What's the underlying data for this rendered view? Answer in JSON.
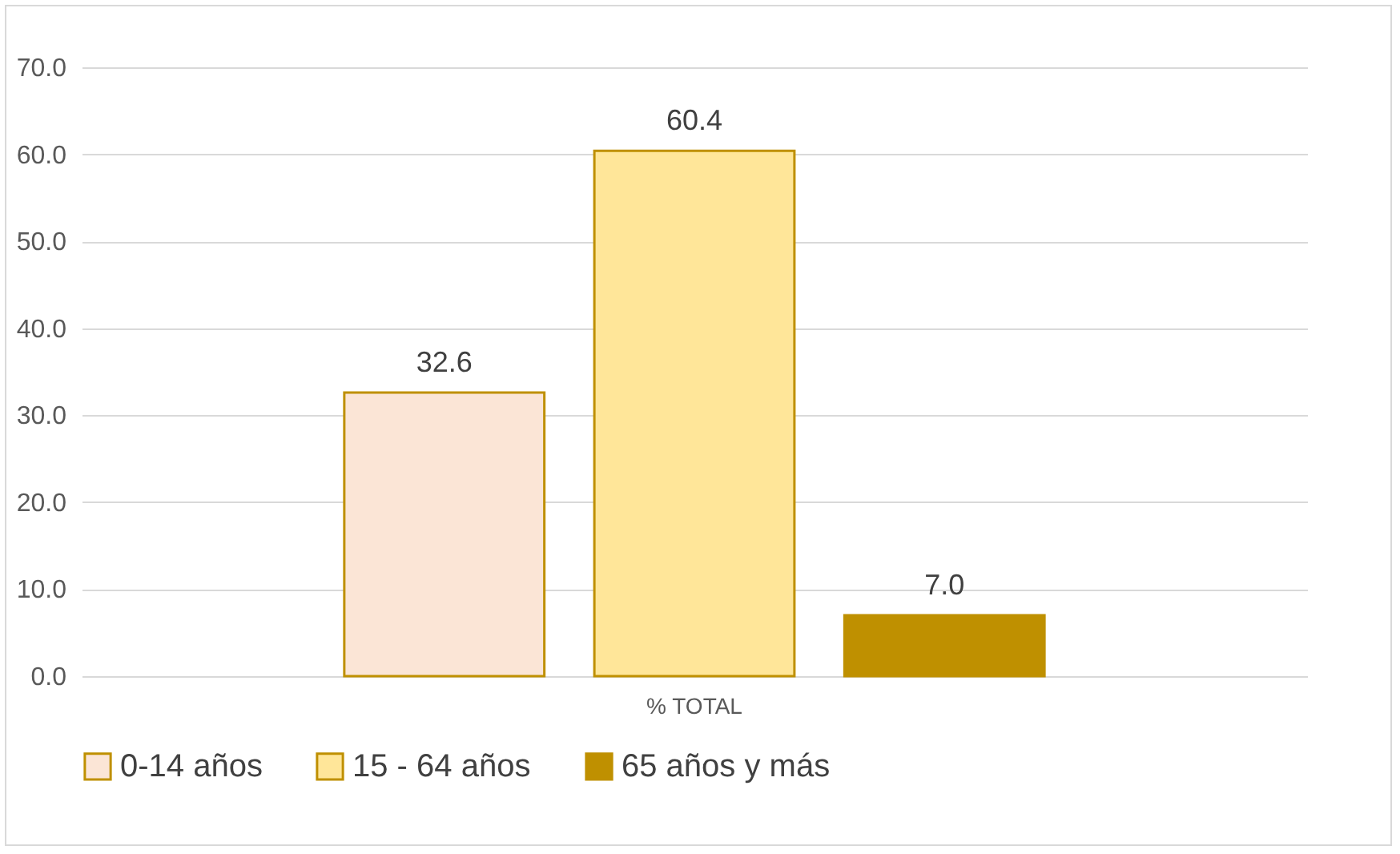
{
  "chart_data": {
    "type": "bar",
    "categories": [
      "% TOTAL"
    ],
    "series": [
      {
        "name": "0-14 años",
        "color": "#fbe5d6",
        "values": [
          32.6
        ],
        "value_labels": [
          "32.6"
        ]
      },
      {
        "name": "15 - 64 años",
        "color": "#ffe699",
        "values": [
          60.4
        ],
        "value_labels": [
          "60.4"
        ]
      },
      {
        "name": "65 años y más",
        "color": "#bf9000",
        "values": [
          7.0
        ],
        "value_labels": [
          "7.0"
        ]
      }
    ],
    "ylim": [
      0,
      70
    ],
    "yticks": [
      {
        "value": 0,
        "label": "0.0"
      },
      {
        "value": 10,
        "label": "10.0"
      },
      {
        "value": 20,
        "label": "20.0"
      },
      {
        "value": 30,
        "label": "30.0"
      },
      {
        "value": 40,
        "label": "40.0"
      },
      {
        "value": 50,
        "label": "50.0"
      },
      {
        "value": 60,
        "label": "60.0"
      },
      {
        "value": 70,
        "label": "70.0"
      }
    ],
    "grid": "y",
    "legend": "bottom"
  }
}
